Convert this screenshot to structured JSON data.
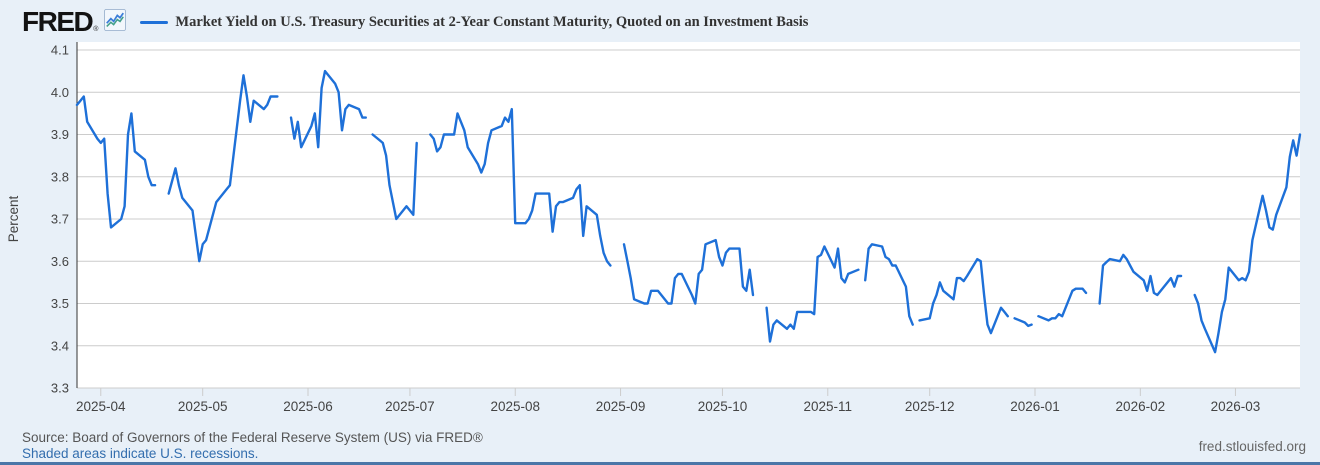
{
  "header": {
    "logo": "FRED",
    "registered_mark": "®",
    "logo_icon": "fred-sparkline-icon",
    "series_title": "Market Yield on U.S. Treasury Securities at 2-Year Constant Maturity, Quoted on an Investment Basis"
  },
  "footer": {
    "source": "Source: Board of Governors of the Federal Reserve System (US) via FRED®",
    "recession_note": "Shaded areas indicate U.S. recessions.",
    "site": "fred.stlouisfed.org"
  },
  "colors": {
    "background": "#e8f0f8",
    "plot_background": "#ffffff",
    "line": "#1e70d8",
    "grid": "#cccccc",
    "axis": "#333333",
    "tick_text": "#444444",
    "link": "#336eae",
    "source_text": "#555555",
    "site_text": "#666666",
    "bottom_bar": "#4a76a8",
    "icon_blue": "#3b7dd8",
    "icon_teal": "#43a08a"
  },
  "chart_data": {
    "type": "line",
    "title": "Market Yield on U.S. Treasury Securities at 2-Year Constant Maturity, Quoted on an Investment Basis",
    "ylabel": "Percent",
    "unit": "percent",
    "frequency": "daily-business-days",
    "grid": "horizontal-only",
    "legend_position": "top",
    "ylim": [
      3.3,
      4.1
    ],
    "y_ticks": [
      4.1,
      4.0,
      3.9,
      3.8,
      3.7,
      3.6,
      3.5,
      3.4,
      3.3
    ],
    "x_tick_labels": [
      "2025-04",
      "2025-05",
      "2025-06",
      "2025-07",
      "2025-08",
      "2025-09",
      "2025-10",
      "2025-11",
      "2025-12",
      "2026-01",
      "2026-02",
      "2026-03"
    ],
    "start_date": "2025-03-25",
    "end_date": "2026-03-20",
    "values": [
      3.97,
      3.98,
      3.99,
      3.93,
      3.89,
      3.88,
      3.89,
      3.76,
      3.68,
      3.7,
      3.73,
      3.9,
      3.95,
      3.86,
      3.84,
      3.8,
      3.78,
      3.78,
      null,
      3.76,
      3.79,
      3.82,
      3.78,
      3.75,
      3.72,
      3.66,
      3.6,
      3.64,
      3.65,
      3.74,
      3.75,
      3.76,
      3.77,
      3.78,
      3.98,
      4.04,
      3.99,
      3.93,
      3.98,
      3.96,
      3.97,
      3.99,
      3.99,
      3.99,
      null,
      3.94,
      3.89,
      3.93,
      3.87,
      3.92,
      3.95,
      3.87,
      4.01,
      4.05,
      4.02,
      4.0,
      3.91,
      3.96,
      3.97,
      3.96,
      3.94,
      3.94,
      null,
      3.9,
      3.88,
      3.85,
      3.78,
      3.74,
      3.7,
      3.73,
      3.72,
      3.71,
      3.88,
      null,
      3.9,
      3.89,
      3.86,
      3.87,
      3.9,
      3.9,
      3.95,
      3.93,
      3.91,
      3.87,
      3.83,
      3.81,
      3.83,
      3.88,
      3.91,
      3.92,
      3.94,
      3.93,
      3.96,
      3.69,
      3.69,
      3.7,
      3.72,
      3.76,
      3.76,
      3.76,
      3.67,
      3.73,
      3.74,
      3.74,
      3.75,
      3.77,
      3.78,
      3.66,
      3.73,
      3.71,
      3.66,
      3.62,
      3.6,
      3.59,
      null,
      3.64,
      3.6,
      3.56,
      3.51,
      3.5,
      3.5,
      3.53,
      3.53,
      3.53,
      3.5,
      3.5,
      3.56,
      3.57,
      3.57,
      3.52,
      3.5,
      3.57,
      3.58,
      3.64,
      3.65,
      3.61,
      3.59,
      3.62,
      3.63,
      3.63,
      3.54,
      3.53,
      3.58,
      3.52,
      null,
      3.49,
      3.41,
      3.45,
      3.46,
      3.44,
      3.45,
      3.44,
      3.48,
      3.48,
      3.48,
      3.475,
      3.61,
      3.615,
      3.635,
      3.585,
      3.63,
      3.56,
      3.55,
      3.57,
      3.58,
      null,
      3.555,
      3.63,
      3.64,
      3.635,
      3.61,
      3.605,
      3.59,
      3.59,
      3.54,
      3.47,
      3.45,
      null,
      3.46,
      3.465,
      3.5,
      3.52,
      3.55,
      3.53,
      3.51,
      3.56,
      3.56,
      3.553,
      3.565,
      3.605,
      3.6,
      3.52,
      3.45,
      3.43,
      3.49,
      3.48,
      3.47,
      null,
      3.465,
      3.455,
      3.447,
      3.45,
      null,
      3.47,
      3.46,
      3.465,
      3.465,
      3.475,
      3.47,
      3.53,
      3.535,
      3.535,
      3.535,
      3.525,
      null,
      3.5,
      3.59,
      3.598,
      3.605,
      3.6,
      3.615,
      3.605,
      3.59,
      3.575,
      3.555,
      3.53,
      3.565,
      3.525,
      3.52,
      3.55,
      3.56,
      3.54,
      3.565,
      3.565,
      null,
      3.52,
      3.5,
      3.46,
      3.44,
      3.385,
      3.43,
      3.48,
      3.51,
      3.585,
      3.555,
      3.56,
      3.555,
      3.575,
      3.65,
      3.755,
      3.72,
      3.68,
      3.675,
      3.71,
      3.775,
      3.847,
      3.886,
      3.85,
      3.9
    ]
  }
}
